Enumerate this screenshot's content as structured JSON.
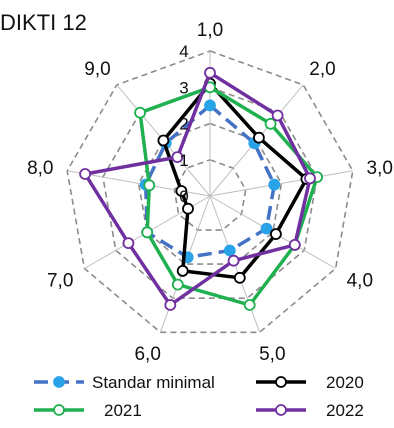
{
  "chart_data": {
    "type": "radar",
    "title": "DIKTI 12",
    "categories": [
      "1,0",
      "2,0",
      "3,0",
      "4,0",
      "5,0",
      "6,0",
      "7,0",
      "8,0",
      "9,0"
    ],
    "rmax": 4,
    "ticks": [
      "0",
      "1",
      "2",
      "3",
      "4"
    ],
    "grid": true,
    "legend_position": "bottom",
    "series": [
      {
        "name": "Standar minimal",
        "color": "#4472C4",
        "dashed": true,
        "marker": "filled",
        "values": [
          2.5,
          1.9,
          1.8,
          1.8,
          1.6,
          1.8,
          2.0,
          1.8,
          1.9
        ]
      },
      {
        "name": "2020",
        "color": "#000000",
        "dashed": false,
        "marker": "open",
        "values": [
          3.1,
          2.1,
          2.7,
          2.1,
          2.4,
          2.2,
          0.7,
          0.8,
          2.0
        ]
      },
      {
        "name": "2021",
        "color": "#1FB050",
        "dashed": false,
        "marker": "open",
        "values": [
          3.0,
          2.6,
          3.0,
          2.7,
          3.2,
          2.6,
          2.0,
          1.7,
          3.0
        ]
      },
      {
        "name": "2022",
        "color": "#7030A0",
        "dashed": false,
        "marker": "open",
        "values": [
          3.4,
          2.9,
          2.8,
          2.7,
          1.9,
          3.2,
          2.6,
          3.5,
          1.4
        ]
      }
    ]
  }
}
